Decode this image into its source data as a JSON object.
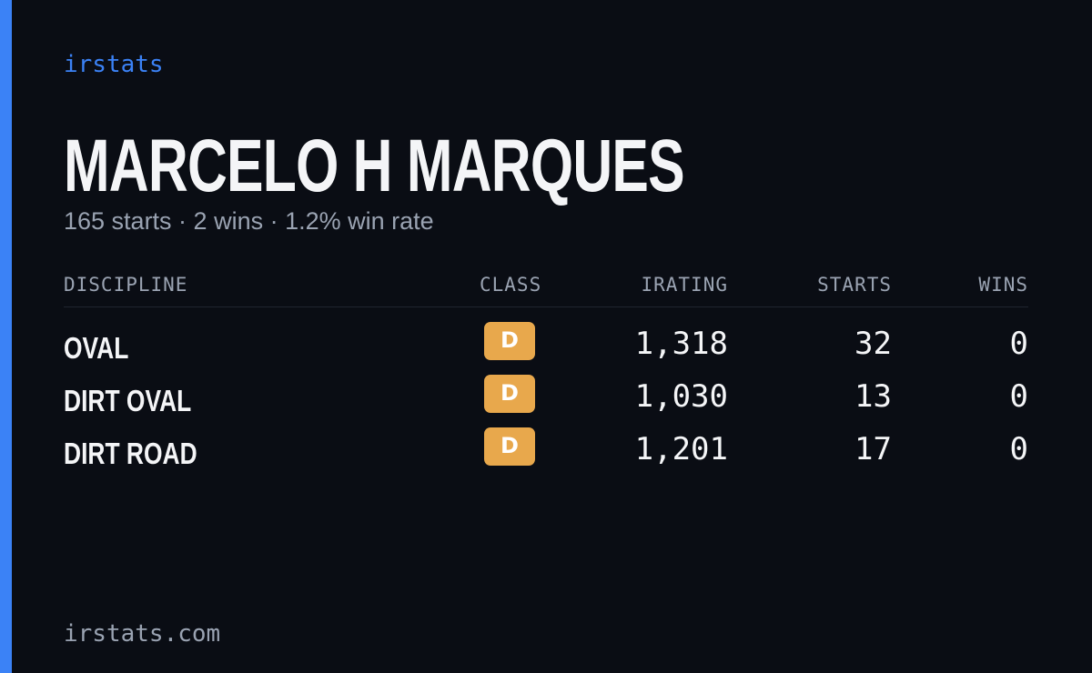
{
  "brand": "irstats",
  "driver": {
    "name": "MARCELO H MARQUES",
    "summary": "165 starts · 2 wins · 1.2% win rate"
  },
  "table": {
    "headers": [
      "DISCIPLINE",
      "CLASS",
      "IRATING",
      "STARTS",
      "WINS"
    ],
    "rows": [
      [
        "OVAL",
        "D",
        "1,318",
        "32",
        "0"
      ],
      [
        "DIRT OVAL",
        "D",
        "1,030",
        "13",
        "0"
      ],
      [
        "DIRT ROAD",
        "D",
        "1,201",
        "17",
        "0"
      ]
    ]
  },
  "footer": "irstats.com"
}
